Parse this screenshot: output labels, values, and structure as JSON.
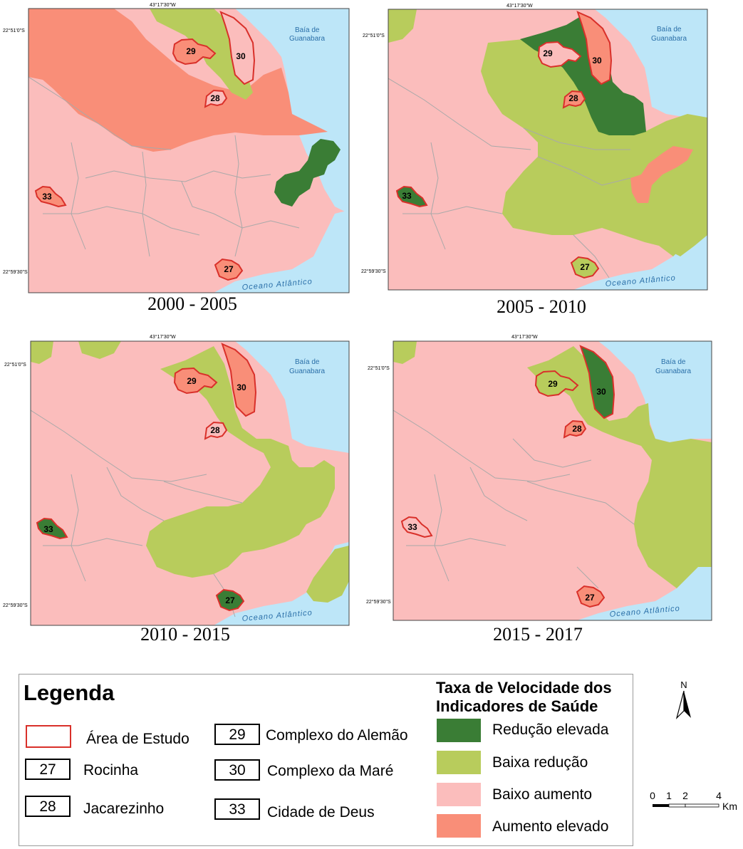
{
  "maps": [
    {
      "period": "2000 - 2005",
      "labels": {
        "lon": "43°17'30\"W",
        "lat_top": "22°51'0\"S",
        "lat_bottom": "22°59'30\"S",
        "bay": "Baía de\nGuanabara",
        "ocean": "Oceano Atlântico"
      }
    },
    {
      "period": "2005 - 2010",
      "labels": {
        "lon": "43°17'30\"W",
        "lat_top": "22°51'0\"S",
        "lat_bottom": "22°59'30\"S",
        "bay": "Baía de\nGuanabara",
        "ocean": "Oceano Atlântico"
      }
    },
    {
      "period": "2010 - 2015",
      "labels": {
        "lon": "43°17'30\"W",
        "lat_top": "22°51'0\"S",
        "lat_bottom": "22°59'30\"S",
        "bay": "Baía de\nGuanabara",
        "ocean": "Oceano Atlântico"
      }
    },
    {
      "period": "2015 - 2017",
      "labels": {
        "lon": "43°17'30\"W",
        "lat_top": "22°51'0\"S",
        "lat_bottom": "22°59'30\"S",
        "bay": "Baía de\nGuanabara",
        "ocean": "Oceano Atlântico"
      }
    }
  ],
  "area_ids": {
    "rocinha": "27",
    "jacarezinho": "28",
    "alemao": "29",
    "mare": "30",
    "cidade_de_deus": "33"
  },
  "legend": {
    "title": "Legenda",
    "study_area": "Área de Estudo",
    "areas": [
      {
        "id": "27",
        "name": "Rocinha"
      },
      {
        "id": "28",
        "name": "Jacarezinho"
      },
      {
        "id": "29",
        "name": "Complexo do Alemão"
      },
      {
        "id": "30",
        "name": "Complexo da Maré"
      },
      {
        "id": "33",
        "name": "Cidade de Deus"
      }
    ],
    "category_title_line1": "Taxa de Velocidade dos",
    "category_title_line2": "Indicadores de Saúde",
    "categories": [
      {
        "label": "Redução elevada",
        "color": "#3a7d35"
      },
      {
        "label": "Baixa redução",
        "color": "#b8cc5c"
      },
      {
        "label": "Baixo aumento",
        "color": "#fbbdbc"
      },
      {
        "label": "Aumento elevado",
        "color": "#f98e78"
      }
    ]
  },
  "colors": {
    "water": "#bde6f8",
    "study_outline": "#d9302a",
    "boundary": "#a9a9a9"
  },
  "north_label": "N",
  "scale": {
    "ticks": [
      "0",
      "1",
      "2",
      "4"
    ],
    "unit": "Km"
  }
}
